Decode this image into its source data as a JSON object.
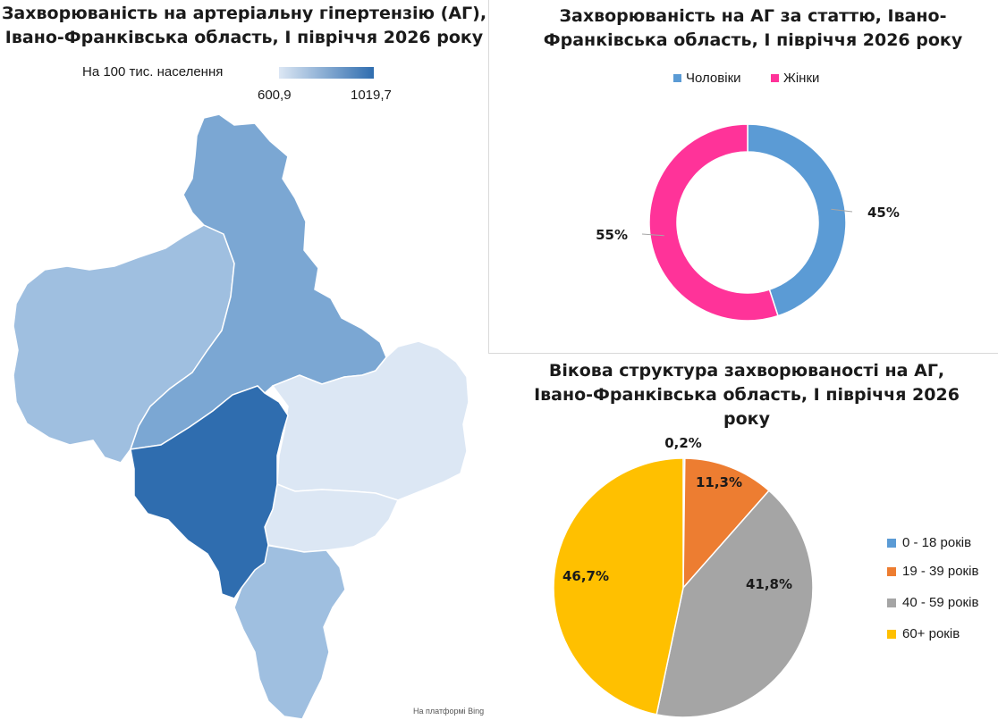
{
  "map_panel": {
    "title_line1": "Захворюваність на артеріальну гіпертензію  (АГ),",
    "title_line2": "Івано-Франківська область, І півріччя 2026 року",
    "scale_caption": "На 100 тис. населення",
    "scale_min": "600,9",
    "scale_max": "1019,7",
    "credit": "На платформі Bing",
    "colors": {
      "light": "#dce7f4",
      "medium": "#9fbfe0",
      "mid_dark": "#7ba7d3",
      "dark": "#2f6daf"
    }
  },
  "chart_data": [
    {
      "type": "pie",
      "variant": "donut",
      "title_line1": "Захворюваність на АГ за статтю, Івано-",
      "title_line2": "Франківська область, І півріччя 2026 року",
      "legend_position": "top",
      "series": [
        {
          "name": "Чоловіки",
          "value": 45,
          "label": "45%",
          "color": "#5b9bd5"
        },
        {
          "name": "Жінки",
          "value": 55,
          "label": "55%",
          "color": "#ff3399"
        }
      ]
    },
    {
      "type": "pie",
      "title_line1": "Вікова структура захворюваності на АГ,",
      "title_line2": "Івано-Франківська область, І півріччя 2026",
      "title_line3": "року",
      "legend_position": "right",
      "series": [
        {
          "name": "0 - 18 років",
          "value": 0.2,
          "label": "0,2%",
          "color": "#5b9bd5"
        },
        {
          "name": "19 - 39 років",
          "value": 11.3,
          "label": "11,3%",
          "color": "#ed7d31"
        },
        {
          "name": "40 - 59 років",
          "value": 41.8,
          "label": "41,8%",
          "color": "#a5a5a5"
        },
        {
          "name": "60+ років",
          "value": 46.7,
          "label": "46,7%",
          "color": "#ffc000"
        }
      ]
    }
  ]
}
